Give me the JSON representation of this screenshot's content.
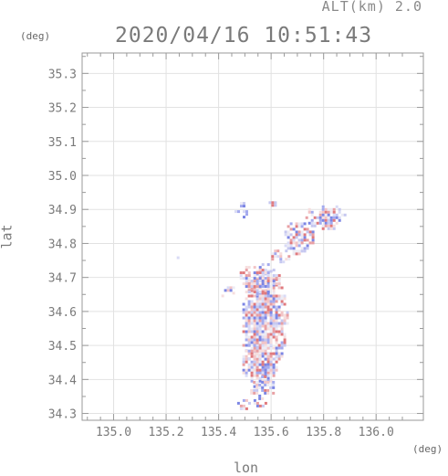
{
  "header": {
    "altitude_label": "ALT(km) 2.0",
    "timestamp": "2020/04/16 10:51:43",
    "y_unit": "(deg)",
    "x_unit": "(deg)"
  },
  "chart_data": {
    "type": "heatmap",
    "xlabel": "lon",
    "ylabel": "lat",
    "xlim": [
      134.88,
      136.18
    ],
    "ylim": [
      34.28,
      35.36
    ],
    "x_ticks": [
      "135.0",
      "135.2",
      "135.4",
      "135.6",
      "135.8",
      "136.0"
    ],
    "y_ticks": [
      "34.3",
      "34.4",
      "34.5",
      "34.6",
      "34.7",
      "34.8",
      "34.9",
      "35.0",
      "35.1",
      "35.2",
      "35.3"
    ],
    "grid": true,
    "colors": {
      "positive": "#e06a6a",
      "negative": "#5a6ae0",
      "neutral": "#e8e8f0",
      "axis": "#9a9a9a",
      "grid": "#e2e2e2"
    }
  }
}
